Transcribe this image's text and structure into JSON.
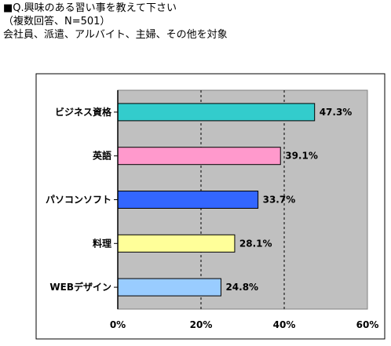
{
  "header": {
    "title": "■Q.興味のある習い事を教えて下さい",
    "subtitle": "（複数回答、N=501）",
    "target": "会社員、派遣、アルバイト、主婦、その他を対象"
  },
  "chart_data": {
    "type": "bar",
    "orientation": "horizontal",
    "categories": [
      "ビジネス資格",
      "英語",
      "パソコンソフト",
      "料理",
      "WEBデザイン"
    ],
    "values": [
      47.3,
      39.1,
      33.7,
      28.1,
      24.8
    ],
    "value_labels": [
      "47.3%",
      "39.1%",
      "33.7%",
      "28.1%",
      "24.8%"
    ],
    "bar_colors": [
      "#33cccc",
      "#ff99cc",
      "#3366ff",
      "#ffff99",
      "#99ccff"
    ],
    "plot_background": "#c0c0c0",
    "xlim": [
      0,
      60
    ],
    "xticks": [
      0,
      20,
      40,
      60
    ],
    "xtick_labels": [
      "0%",
      "20%",
      "40%",
      "60%"
    ],
    "grid": "vertical dashed"
  }
}
